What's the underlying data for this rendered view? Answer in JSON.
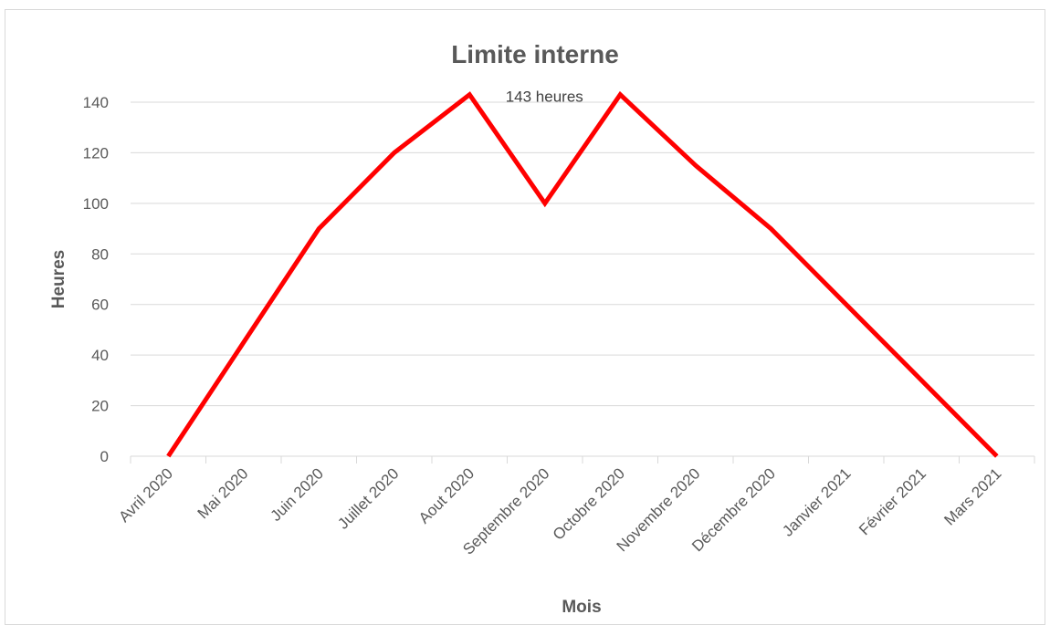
{
  "chart_data": {
    "type": "line",
    "title": "Limite interne",
    "xlabel": "Mois",
    "ylabel": "Heures",
    "categories": [
      "Avril 2020",
      "Mai 2020",
      "Juin 2020",
      "Juillet 2020",
      "Aout 2020",
      "Septembre 2020",
      "Octobre 2020",
      "Novembre 2020",
      "Décembre 2020",
      "Janvier 2021",
      "Février 2021",
      "Mars 2021"
    ],
    "series": [
      {
        "values": [
          0,
          45,
          90,
          120,
          143,
          100,
          143,
          115,
          90,
          60,
          30,
          0
        ],
        "color": "#ff0000"
      }
    ],
    "ylim": [
      0,
      140
    ],
    "yticks": [
      0,
      20,
      40,
      60,
      80,
      100,
      120,
      140
    ],
    "grid": true,
    "legend": "none",
    "annotations": [
      {
        "category_index": 4,
        "text": "143 heures"
      }
    ]
  }
}
